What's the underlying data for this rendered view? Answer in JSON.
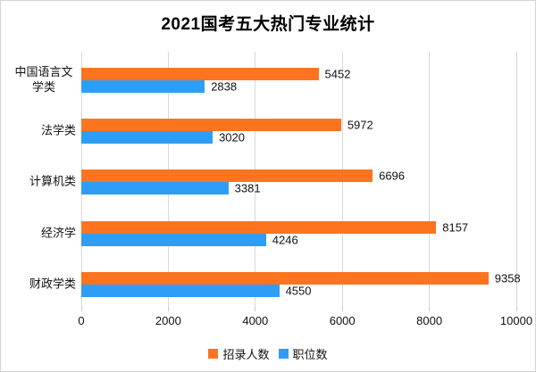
{
  "frame": {
    "background_color": "#ffffff",
    "border_color": "#d4d4d4"
  },
  "chart_data": {
    "type": "bar",
    "orientation": "horizontal",
    "title": "2021国考五大热门专业统计",
    "categories": [
      "中国语言文学类",
      "法学类",
      "计算机类",
      "经济学",
      "财政学类"
    ],
    "series": [
      {
        "name": "招录人数",
        "color": "#fc7420",
        "values": [
          5452,
          5972,
          6696,
          8157,
          9358
        ]
      },
      {
        "name": "职位数",
        "color": "#2e9df6",
        "values": [
          2838,
          3020,
          3381,
          4246,
          4550
        ]
      }
    ],
    "xlim": [
      0,
      10000
    ],
    "xticks": [
      0,
      2000,
      4000,
      6000,
      8000,
      10000
    ],
    "grid": true,
    "gridline_color": "#d9d9d9",
    "data_labels": true,
    "label_color": "#111111",
    "legend_position": "bottom",
    "category_order": "top-to-bottom"
  }
}
